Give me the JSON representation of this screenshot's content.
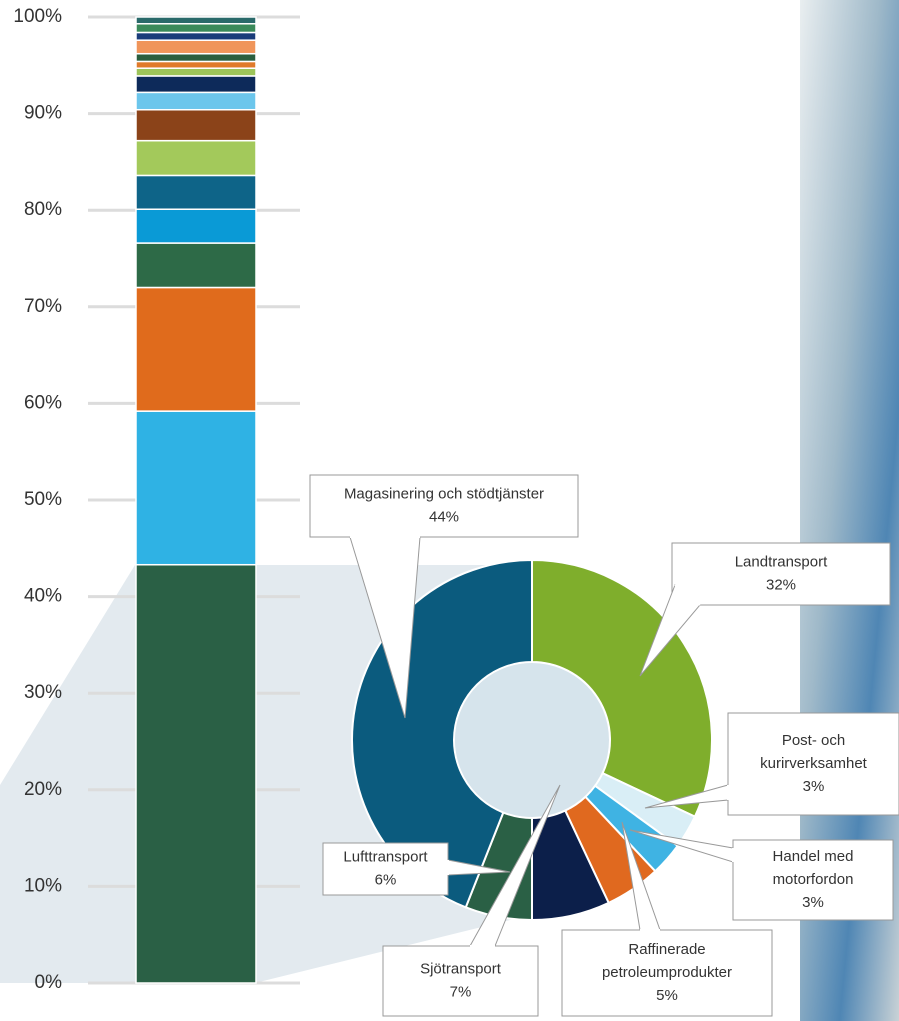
{
  "chart_data": [
    {
      "type": "stacked-bar",
      "categories": [
        null
      ],
      "ylim": [
        0,
        100
      ],
      "yticks": [
        {
          "value": 0,
          "label": "0%"
        },
        {
          "value": 10,
          "label": "10%"
        },
        {
          "value": 20,
          "label": "20%"
        },
        {
          "value": 30,
          "label": "30%"
        },
        {
          "value": 40,
          "label": "40%"
        },
        {
          "value": 50,
          "label": "50%"
        },
        {
          "value": 60,
          "label": "60%"
        },
        {
          "value": 70,
          "label": "70%"
        },
        {
          "value": 80,
          "label": "80%"
        },
        {
          "value": 90,
          "label": "90%"
        },
        {
          "value": 100,
          "label": "100%"
        }
      ],
      "grid": true,
      "series": [
        {
          "color": "#2a6045",
          "values": [
            43.3
          ]
        },
        {
          "color": "#2fb2e4",
          "values": [
            15.9
          ]
        },
        {
          "color": "#e06b1c",
          "values": [
            12.8
          ]
        },
        {
          "color": "#2d6a47",
          "values": [
            4.6
          ]
        },
        {
          "color": "#0a9ad6",
          "values": [
            3.5
          ]
        },
        {
          "color": "#0e6488",
          "values": [
            3.5
          ]
        },
        {
          "color": "#a3c95b",
          "values": [
            3.6
          ]
        },
        {
          "color": "#8b4319",
          "values": [
            3.2
          ]
        },
        {
          "color": "#6cc6ec",
          "values": [
            1.8
          ]
        },
        {
          "color": "#0d2a5a",
          "values": [
            1.7
          ]
        },
        {
          "color": "#9dc45a",
          "values": [
            0.8
          ]
        },
        {
          "color": "#e07a2a",
          "values": [
            0.7
          ]
        },
        {
          "color": "#2a5e3e",
          "values": [
            0.8
          ]
        },
        {
          "color": "#f0955a",
          "values": [
            1.4
          ]
        },
        {
          "color": "#1a3c7a",
          "values": [
            0.8
          ]
        },
        {
          "color": "#3a8a5a",
          "values": [
            0.9
          ]
        },
        {
          "color": "#2a6a6a",
          "values": [
            0.7
          ]
        }
      ]
    },
    {
      "type": "doughnut",
      "categories": [
        [
          "Magasinering och stödtjänster"
        ],
        [
          "Landtransport"
        ],
        [
          "Post- och",
          "kurirverksamhet"
        ],
        [
          "Handel med",
          "motorfordon"
        ],
        [
          "Raffinerade",
          "petroleumprodukter"
        ],
        [
          "Sjötransport"
        ],
        [
          "Lufttransport"
        ]
      ],
      "values": [
        44,
        32,
        3,
        3,
        5,
        7,
        6
      ],
      "value_labels": [
        "44%",
        "32%",
        "3%",
        "3%",
        "5%",
        "7%",
        "6%"
      ],
      "colors": [
        "#0b5b7e",
        "#7fae2c",
        "#d9eef6",
        "#3fb3e3",
        "#e0691f",
        "#0c1f4a",
        "#2a6045"
      ]
    }
  ]
}
